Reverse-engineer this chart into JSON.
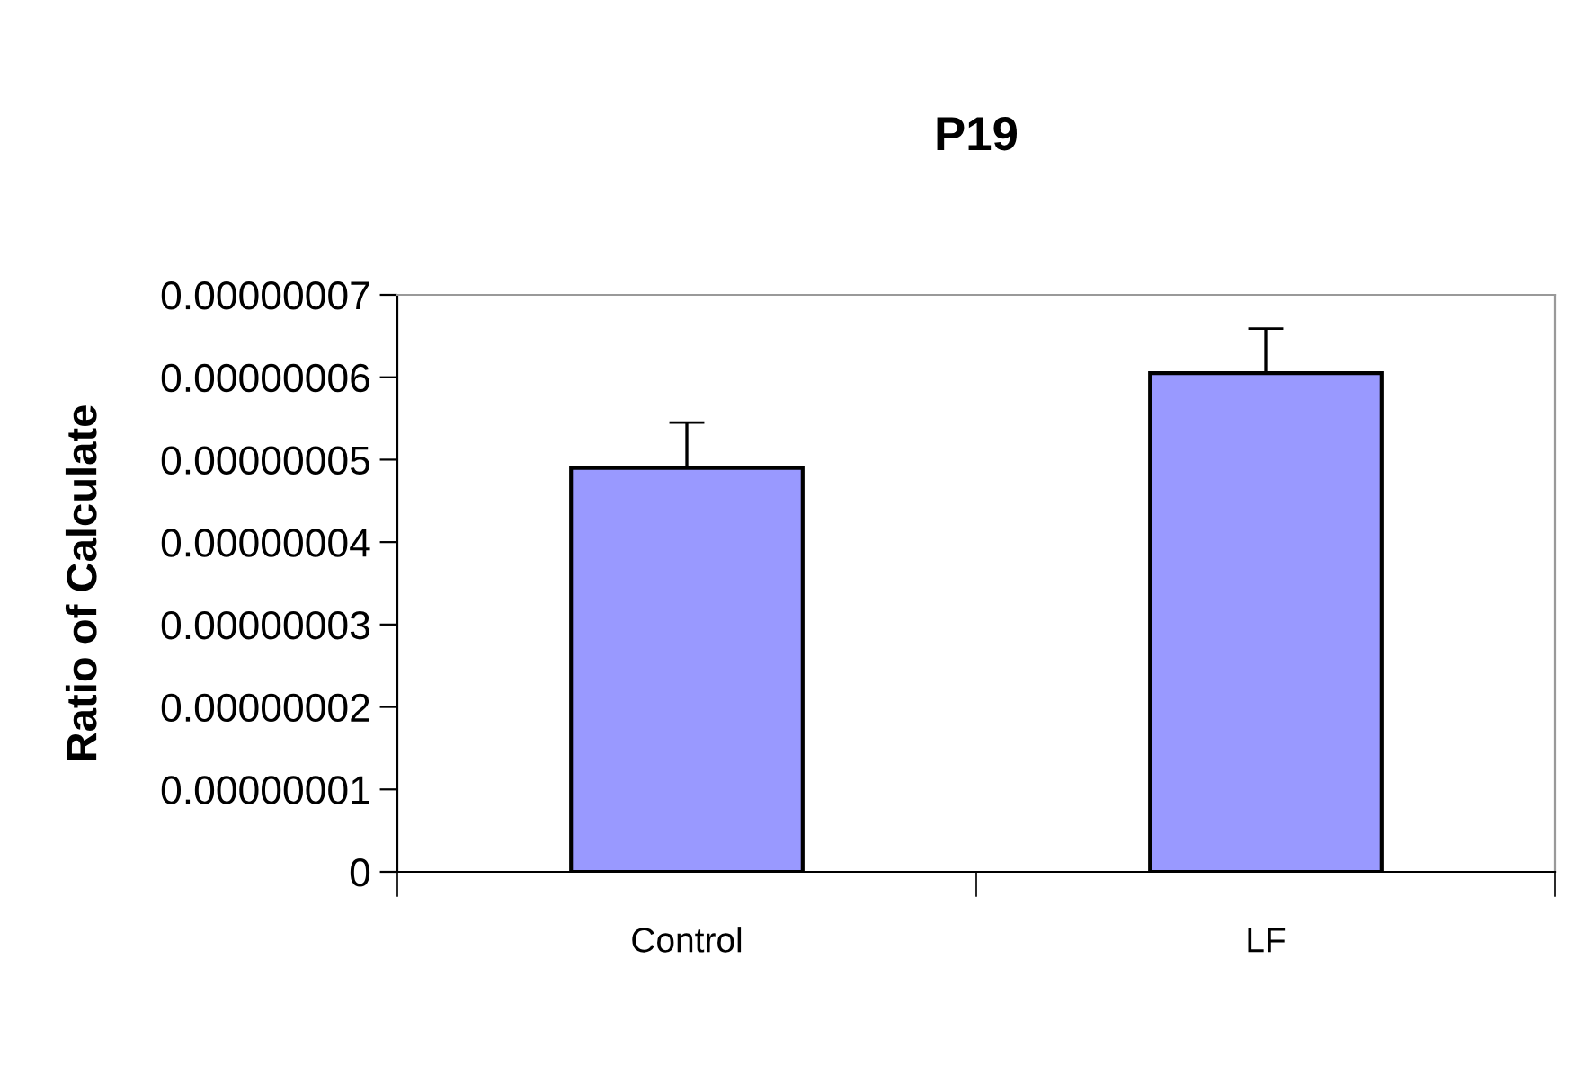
{
  "chart_data": {
    "type": "bar",
    "title": "P19",
    "ylabel": "Ratio of Calculate",
    "categories": [
      "Control",
      "LF"
    ],
    "values": [
      4.9e-08,
      6.05e-08
    ],
    "errors": [
      [
        4.9e-08,
        5.45e-08
      ],
      [
        6.05e-08,
        6.59e-08
      ]
    ],
    "color": "#9999ff",
    "ylim": [
      0,
      7e-08
    ],
    "yticks": [
      0,
      {
        "value": 1e-08,
        "label": "0.00000001"
      },
      {
        "value": 2e-08,
        "label": "0.00000002"
      },
      {
        "value": 3e-08,
        "label": "0.00000003"
      },
      {
        "value": 4e-08,
        "label": "0.00000004"
      },
      {
        "value": 5e-08,
        "label": "0.00000005"
      },
      {
        "value": 6e-08,
        "label": "0.00000006"
      },
      {
        "value": 7e-08,
        "label": "0.00000007"
      }
    ],
    "grid": false,
    "legend": false
  }
}
